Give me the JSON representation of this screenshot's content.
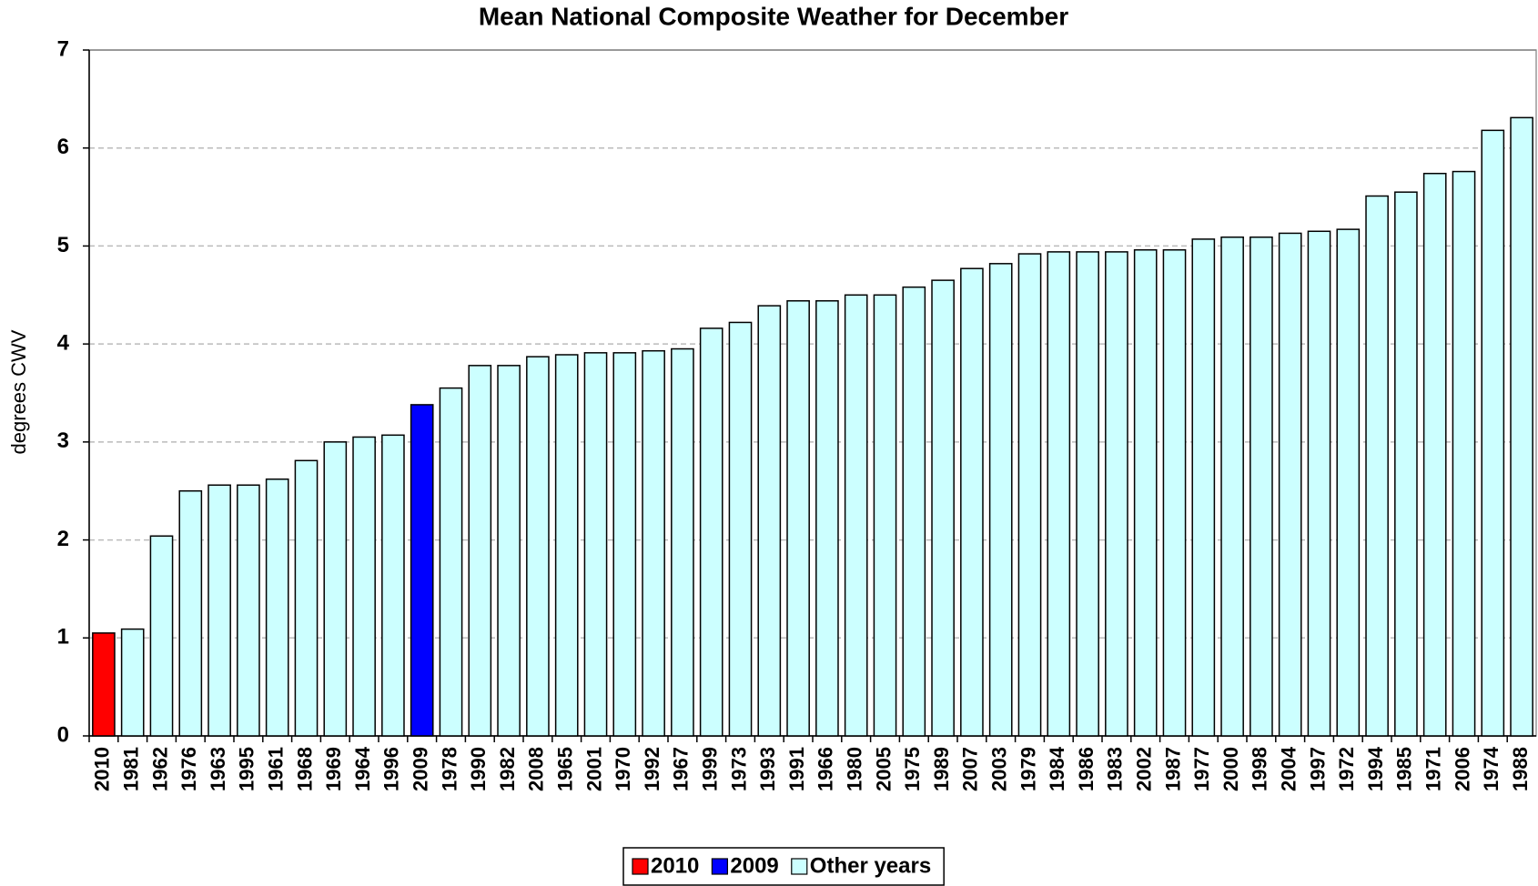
{
  "chart_data": {
    "type": "bar",
    "title": "Mean National Composite Weather for December",
    "y_label": "degrees CWV",
    "categories": [
      "2010",
      "1981",
      "1962",
      "1976",
      "1963",
      "1995",
      "1961",
      "1968",
      "1969",
      "1964",
      "1996",
      "2009",
      "1978",
      "1990",
      "1982",
      "2008",
      "1965",
      "2001",
      "1970",
      "1992",
      "1967",
      "1999",
      "1973",
      "1993",
      "1991",
      "1966",
      "1980",
      "2005",
      "1975",
      "1989",
      "2007",
      "2003",
      "1979",
      "1984",
      "1986",
      "1983",
      "2002",
      "1987",
      "1977",
      "2000",
      "1998",
      "2004",
      "1997",
      "1972",
      "1994",
      "1985",
      "1971",
      "2006",
      "1974",
      "1988"
    ],
    "series": [
      {
        "name": "2010",
        "color": "#ff0000",
        "values": [
          1.05,
          null,
          null,
          null,
          null,
          null,
          null,
          null,
          null,
          null,
          null,
          null,
          null,
          null,
          null,
          null,
          null,
          null,
          null,
          null,
          null,
          null,
          null,
          null,
          null,
          null,
          null,
          null,
          null,
          null,
          null,
          null,
          null,
          null,
          null,
          null,
          null,
          null,
          null,
          null,
          null,
          null,
          null,
          null,
          null,
          null,
          null,
          null,
          null,
          null
        ]
      },
      {
        "name": "2009",
        "color": "#0000ff",
        "values": [
          null,
          null,
          null,
          null,
          null,
          null,
          null,
          null,
          null,
          null,
          null,
          3.38,
          null,
          null,
          null,
          null,
          null,
          null,
          null,
          null,
          null,
          null,
          null,
          null,
          null,
          null,
          null,
          null,
          null,
          null,
          null,
          null,
          null,
          null,
          null,
          null,
          null,
          null,
          null,
          null,
          null,
          null,
          null,
          null,
          null,
          null,
          null,
          null,
          null,
          null
        ]
      },
      {
        "name": "Other years",
        "color": "#ccffff",
        "values": [
          null,
          1.09,
          2.04,
          2.5,
          2.56,
          2.56,
          2.62,
          2.81,
          3.0,
          3.05,
          3.07,
          null,
          3.55,
          3.78,
          3.78,
          3.87,
          3.89,
          3.91,
          3.91,
          3.93,
          3.95,
          4.16,
          4.22,
          4.39,
          4.44,
          4.44,
          4.5,
          4.5,
          4.58,
          4.65,
          4.77,
          4.82,
          4.92,
          4.94,
          4.94,
          4.94,
          4.96,
          4.96,
          5.07,
          5.09,
          5.09,
          5.13,
          5.15,
          5.17,
          5.51,
          5.55,
          5.74,
          5.76,
          6.18,
          6.31
        ]
      }
    ],
    "ylim": [
      0,
      7
    ],
    "yticks": [
      0,
      1,
      2,
      3,
      4,
      5,
      6,
      7
    ],
    "grid": true
  }
}
